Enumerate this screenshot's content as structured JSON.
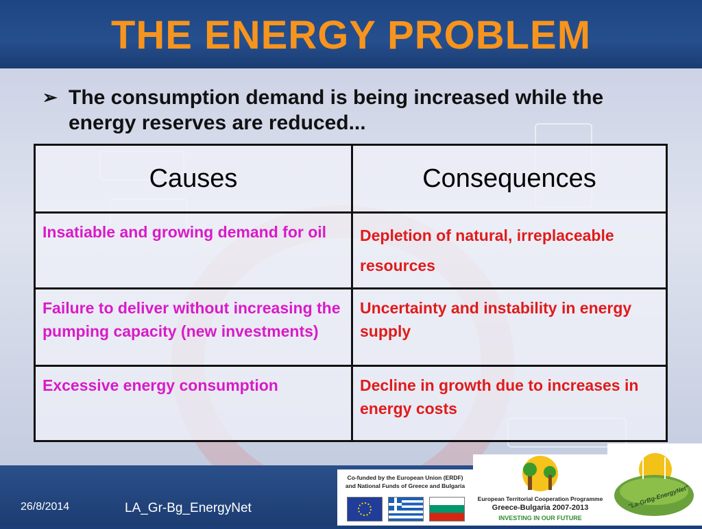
{
  "slide": {
    "title": "THE ENERGY PROBLEM",
    "bullet_mark": "➢",
    "bullet_text": "The consumption demand is being increased while the energy reserves are reduced..."
  },
  "table": {
    "headers": [
      "Causes",
      "Consequences"
    ],
    "rows": [
      {
        "cause": "Insatiable and growing demand for oil",
        "consequence": "Depletion of natural, irreplaceable resources"
      },
      {
        "cause": "Failure to deliver without increasing the pumping capacity (new investments)",
        "consequence": "Uncertainty and instability in energy supply"
      },
      {
        "cause": "Excessive energy consumption",
        "consequence": "Decline in growth due to increases in energy costs"
      }
    ]
  },
  "footer": {
    "date": "26/8/2014",
    "project": "LA_Gr-Bg_EnergyNet"
  },
  "logos": {
    "eu_line1": "Co-funded by the European Union (ERDF)",
    "eu_line2": "and National Funds of Greece and Bulgaria",
    "prog_line1": "European Territorial Cooperation Programme",
    "prog_line2": "Greece-Bulgaria 2007-2013",
    "prog_line3": "INVESTING IN OUR FUTURE",
    "net_label": "\"La-GrBg-EnergyNet\""
  },
  "colors": {
    "title": "#f7941d",
    "cause_text": "#d91ac8",
    "consequence_text": "#e01b1b",
    "background": "#1b3f78"
  }
}
